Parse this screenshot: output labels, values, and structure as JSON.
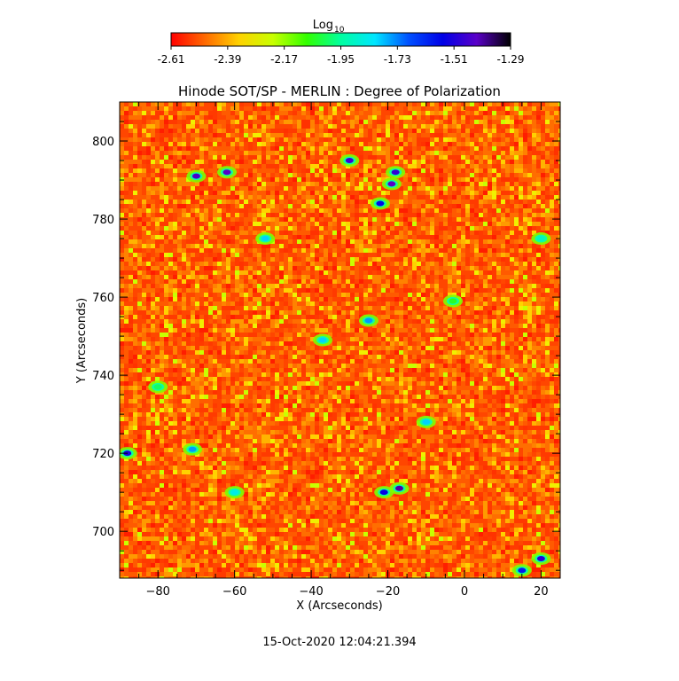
{
  "chart_data": {
    "type": "heatmap",
    "title": "Hinode SOT/SP - MERLIN : Degree of Polarization",
    "xlabel": "X (Arcseconds)",
    "ylabel": "Y (Arcseconds)",
    "xlim": [
      -90,
      25
    ],
    "ylim": [
      688,
      810
    ],
    "xticks": [
      -80,
      -60,
      -40,
      -20,
      0,
      20
    ],
    "yticks": [
      700,
      720,
      740,
      760,
      780,
      800
    ],
    "colorbar": {
      "label": "Log",
      "label_sub": "10",
      "range": [
        -2.61,
        -1.29
      ],
      "ticks": [
        "-2.61",
        "-2.39",
        "-2.17",
        "-1.95",
        "-1.73",
        "-1.51",
        "-1.29"
      ],
      "colors": [
        "#ff0000",
        "#ff6a00",
        "#ffd200",
        "#c8ff00",
        "#32ff00",
        "#00ffa0",
        "#00e6ff",
        "#0050ff",
        "#0000e6",
        "#5a00c8",
        "#000000"
      ]
    },
    "features": [
      {
        "x": -70,
        "y": 791,
        "value": -1.45
      },
      {
        "x": -62,
        "y": 792,
        "value": -1.42
      },
      {
        "x": -30,
        "y": 795,
        "value": -1.47
      },
      {
        "x": -18,
        "y": 792,
        "value": -1.48
      },
      {
        "x": -19,
        "y": 789,
        "value": -1.42
      },
      {
        "x": -22,
        "y": 784,
        "value": -1.57
      },
      {
        "x": -52,
        "y": 775,
        "value": -1.8
      },
      {
        "x": -25,
        "y": 754,
        "value": -1.75
      },
      {
        "x": -37,
        "y": 749,
        "value": -1.8
      },
      {
        "x": -3,
        "y": 759,
        "value": -2.05
      },
      {
        "x": -10,
        "y": 728,
        "value": -1.8
      },
      {
        "x": -88,
        "y": 720,
        "value": -1.52
      },
      {
        "x": -71,
        "y": 721,
        "value": -1.75
      },
      {
        "x": -17,
        "y": 711,
        "value": -1.4
      },
      {
        "x": -21,
        "y": 710,
        "value": -1.55
      },
      {
        "x": 20,
        "y": 693,
        "value": -1.5
      },
      {
        "x": 15,
        "y": 690,
        "value": -1.6
      },
      {
        "x": -80,
        "y": 737,
        "value": -2.0
      },
      {
        "x": 20,
        "y": 775,
        "value": -1.9
      },
      {
        "x": -60,
        "y": 710,
        "value": -1.85
      }
    ]
  },
  "footer": {
    "timestamp": "15-Oct-2020 12:04:21.394"
  }
}
